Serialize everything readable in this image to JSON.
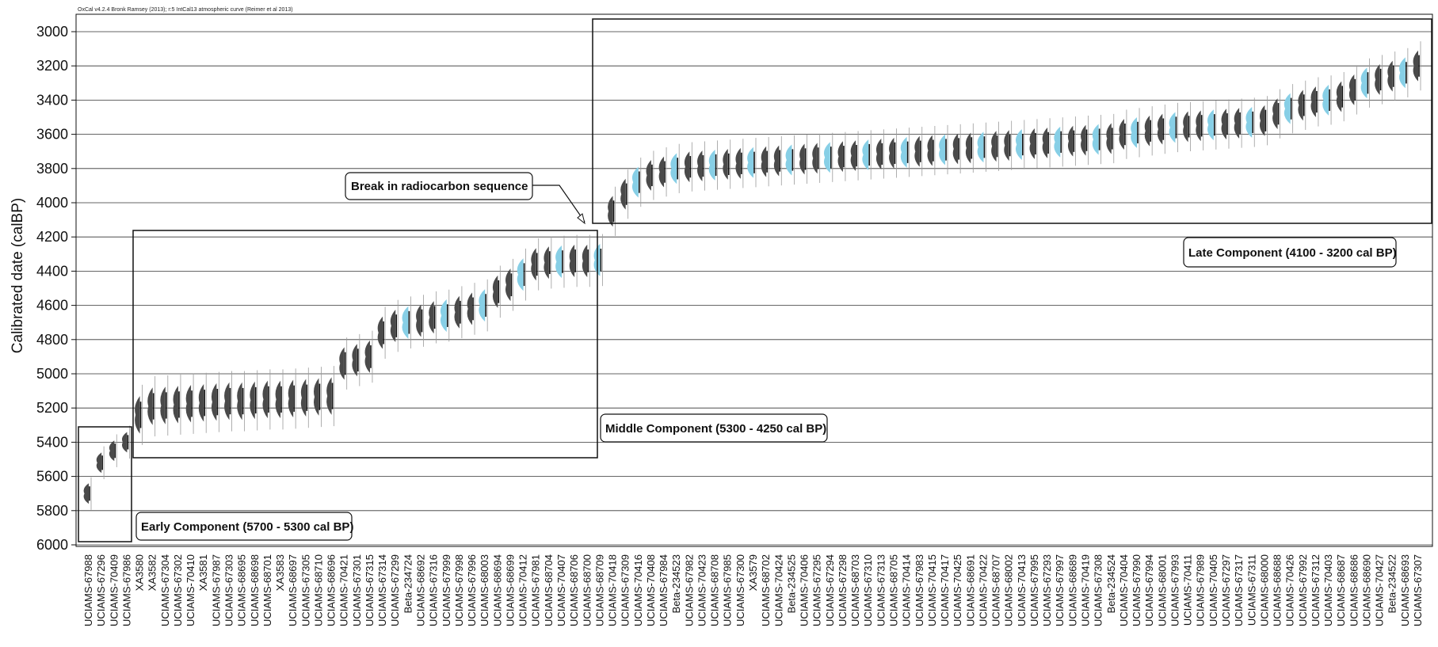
{
  "chart_data": {
    "type": "scatter",
    "header": "OxCal v4.2.4 Bronk Ramsey (2013); r:5 IntCal13 atmospheric curve (Reimer et al 2013)",
    "title": "",
    "xlabel": "",
    "ylabel": "Calibrated date (calBP)",
    "ylim": [
      6000,
      2900
    ],
    "yticks": [
      3000,
      3200,
      3400,
      3600,
      3800,
      4000,
      4200,
      4400,
      4600,
      4800,
      5000,
      5200,
      5400,
      5600,
      5800,
      6000
    ],
    "grid": true,
    "colors": {
      "modelled": "#4a4a4a",
      "unmodelled": "#87cfe6",
      "range_line": "#9a9a9a",
      "grid": "#333333"
    },
    "samples": [
      {
        "label": "UCIAMS-67988",
        "date": 5700
      },
      {
        "label": "UCIAMS-67296",
        "date": 5520
      },
      {
        "label": "UCIAMS-70409",
        "date": 5450
      },
      {
        "label": "UCIAMS-67986",
        "date": 5400
      },
      {
        "label": "XA3580",
        "date": 5240
      },
      {
        "label": "XA3582",
        "date": 5190
      },
      {
        "label": "UCIAMS-67304",
        "date": 5185
      },
      {
        "label": "UCIAMS-67302",
        "date": 5180
      },
      {
        "label": "UCIAMS-70410",
        "date": 5175
      },
      {
        "label": "XA3581",
        "date": 5170
      },
      {
        "label": "UCIAMS-67987",
        "date": 5165
      },
      {
        "label": "UCIAMS-67303",
        "date": 5160
      },
      {
        "label": "UCIAMS-68695",
        "date": 5160
      },
      {
        "label": "UCIAMS-68698",
        "date": 5155
      },
      {
        "label": "UCIAMS-68701",
        "date": 5150
      },
      {
        "label": "XA3583",
        "date": 5150
      },
      {
        "label": "UCIAMS-68697",
        "date": 5145
      },
      {
        "label": "UCIAMS-67305",
        "date": 5140
      },
      {
        "label": "UCIAMS-68710",
        "date": 5135
      },
      {
        "label": "UCIAMS-68696",
        "date": 5130
      },
      {
        "label": "UCIAMS-70421",
        "date": 4940
      },
      {
        "label": "UCIAMS-67301",
        "date": 4920
      },
      {
        "label": "UCIAMS-67315",
        "date": 4900
      },
      {
        "label": "UCIAMS-67314",
        "date": 4760
      },
      {
        "label": "UCIAMS-67299",
        "date": 4720
      },
      {
        "label": "Beta-234724",
        "date": 4700
      },
      {
        "label": "UCIAMS-68692",
        "date": 4690
      },
      {
        "label": "UCIAMS-67316",
        "date": 4670
      },
      {
        "label": "UCIAMS-67999",
        "date": 4660
      },
      {
        "label": "UCIAMS-67998",
        "date": 4640
      },
      {
        "label": "UCIAMS-67996",
        "date": 4620
      },
      {
        "label": "UCIAMS-68003",
        "date": 4600
      },
      {
        "label": "UCIAMS-68694",
        "date": 4520
      },
      {
        "label": "UCIAMS-68699",
        "date": 4480
      },
      {
        "label": "UCIAMS-70412",
        "date": 4420
      },
      {
        "label": "UCIAMS-67981",
        "date": 4360
      },
      {
        "label": "UCIAMS-68704",
        "date": 4350
      },
      {
        "label": "UCIAMS-70407",
        "date": 4345
      },
      {
        "label": "UCIAMS-68706",
        "date": 4340
      },
      {
        "label": "UCIAMS-68700",
        "date": 4340
      },
      {
        "label": "UCIAMS-68709",
        "date": 4335
      },
      {
        "label": "UCIAMS-70418",
        "date": 4050
      },
      {
        "label": "UCIAMS-67309",
        "date": 3950
      },
      {
        "label": "UCIAMS-70416",
        "date": 3880
      },
      {
        "label": "UCIAMS-70408",
        "date": 3840
      },
      {
        "label": "UCIAMS-67984",
        "date": 3820
      },
      {
        "label": "Beta-234523",
        "date": 3800
      },
      {
        "label": "UCIAMS-67982",
        "date": 3790
      },
      {
        "label": "UCIAMS-70423",
        "date": 3785
      },
      {
        "label": "UCIAMS-68708",
        "date": 3780
      },
      {
        "label": "UCIAMS-67985",
        "date": 3775
      },
      {
        "label": "UCIAMS-67300",
        "date": 3770
      },
      {
        "label": "XA3579",
        "date": 3765
      },
      {
        "label": "UCIAMS-68702",
        "date": 3760
      },
      {
        "label": "UCIAMS-70424",
        "date": 3755
      },
      {
        "label": "Beta-234525",
        "date": 3750
      },
      {
        "label": "UCIAMS-70406",
        "date": 3745
      },
      {
        "label": "UCIAMS-67295",
        "date": 3740
      },
      {
        "label": "UCIAMS-67294",
        "date": 3735
      },
      {
        "label": "UCIAMS-67298",
        "date": 3730
      },
      {
        "label": "UCIAMS-68703",
        "date": 3725
      },
      {
        "label": "UCIAMS-67310",
        "date": 3720
      },
      {
        "label": "UCIAMS-67313",
        "date": 3715
      },
      {
        "label": "UCIAMS-68705",
        "date": 3710
      },
      {
        "label": "UCIAMS-70414",
        "date": 3705
      },
      {
        "label": "UCIAMS-67983",
        "date": 3700
      },
      {
        "label": "UCIAMS-70415",
        "date": 3695
      },
      {
        "label": "UCIAMS-70417",
        "date": 3690
      },
      {
        "label": "UCIAMS-70425",
        "date": 3685
      },
      {
        "label": "UCIAMS-68691",
        "date": 3680
      },
      {
        "label": "UCIAMS-70422",
        "date": 3675
      },
      {
        "label": "UCIAMS-68707",
        "date": 3670
      },
      {
        "label": "UCIAMS-68002",
        "date": 3665
      },
      {
        "label": "UCIAMS-70413",
        "date": 3660
      },
      {
        "label": "UCIAMS-67995",
        "date": 3655
      },
      {
        "label": "UCIAMS-67293",
        "date": 3650
      },
      {
        "label": "UCIAMS-67997",
        "date": 3645
      },
      {
        "label": "UCIAMS-68689",
        "date": 3640
      },
      {
        "label": "UCIAMS-70419",
        "date": 3635
      },
      {
        "label": "UCIAMS-67308",
        "date": 3630
      },
      {
        "label": "Beta-234524",
        "date": 3625
      },
      {
        "label": "UCIAMS-70404",
        "date": 3600
      },
      {
        "label": "UCIAMS-67990",
        "date": 3590
      },
      {
        "label": "UCIAMS-67994",
        "date": 3580
      },
      {
        "label": "UCIAMS-68001",
        "date": 3570
      },
      {
        "label": "UCIAMS-67993",
        "date": 3560
      },
      {
        "label": "UCIAMS-70411",
        "date": 3555
      },
      {
        "label": "UCIAMS-67989",
        "date": 3550
      },
      {
        "label": "UCIAMS-70405",
        "date": 3545
      },
      {
        "label": "UCIAMS-67297",
        "date": 3540
      },
      {
        "label": "UCIAMS-67317",
        "date": 3535
      },
      {
        "label": "UCIAMS-67311",
        "date": 3530
      },
      {
        "label": "UCIAMS-68000",
        "date": 3520
      },
      {
        "label": "UCIAMS-68688",
        "date": 3480
      },
      {
        "label": "UCIAMS-70426",
        "date": 3450
      },
      {
        "label": "UCIAMS-67992",
        "date": 3430
      },
      {
        "label": "UCIAMS-67312",
        "date": 3410
      },
      {
        "label": "UCIAMS-70403",
        "date": 3400
      },
      {
        "label": "UCIAMS-68687",
        "date": 3380
      },
      {
        "label": "UCIAMS-68686",
        "date": 3340
      },
      {
        "label": "UCIAMS-68690",
        "date": 3300
      },
      {
        "label": "UCIAMS-70427",
        "date": 3280
      },
      {
        "label": "Beta-234522",
        "date": 3260
      },
      {
        "label": "UCIAMS-68693",
        "date": 3240
      },
      {
        "label": "UCIAMS-67307",
        "date": 3200
      }
    ],
    "annotations": {
      "early": "Early Component (5700 - 5300 cal BP)",
      "middle": "Middle Component (5300 - 4250 cal BP)",
      "late": "Late Component (4100 - 3200 cal BP)",
      "break": "Break in radiocarbon sequence"
    }
  }
}
